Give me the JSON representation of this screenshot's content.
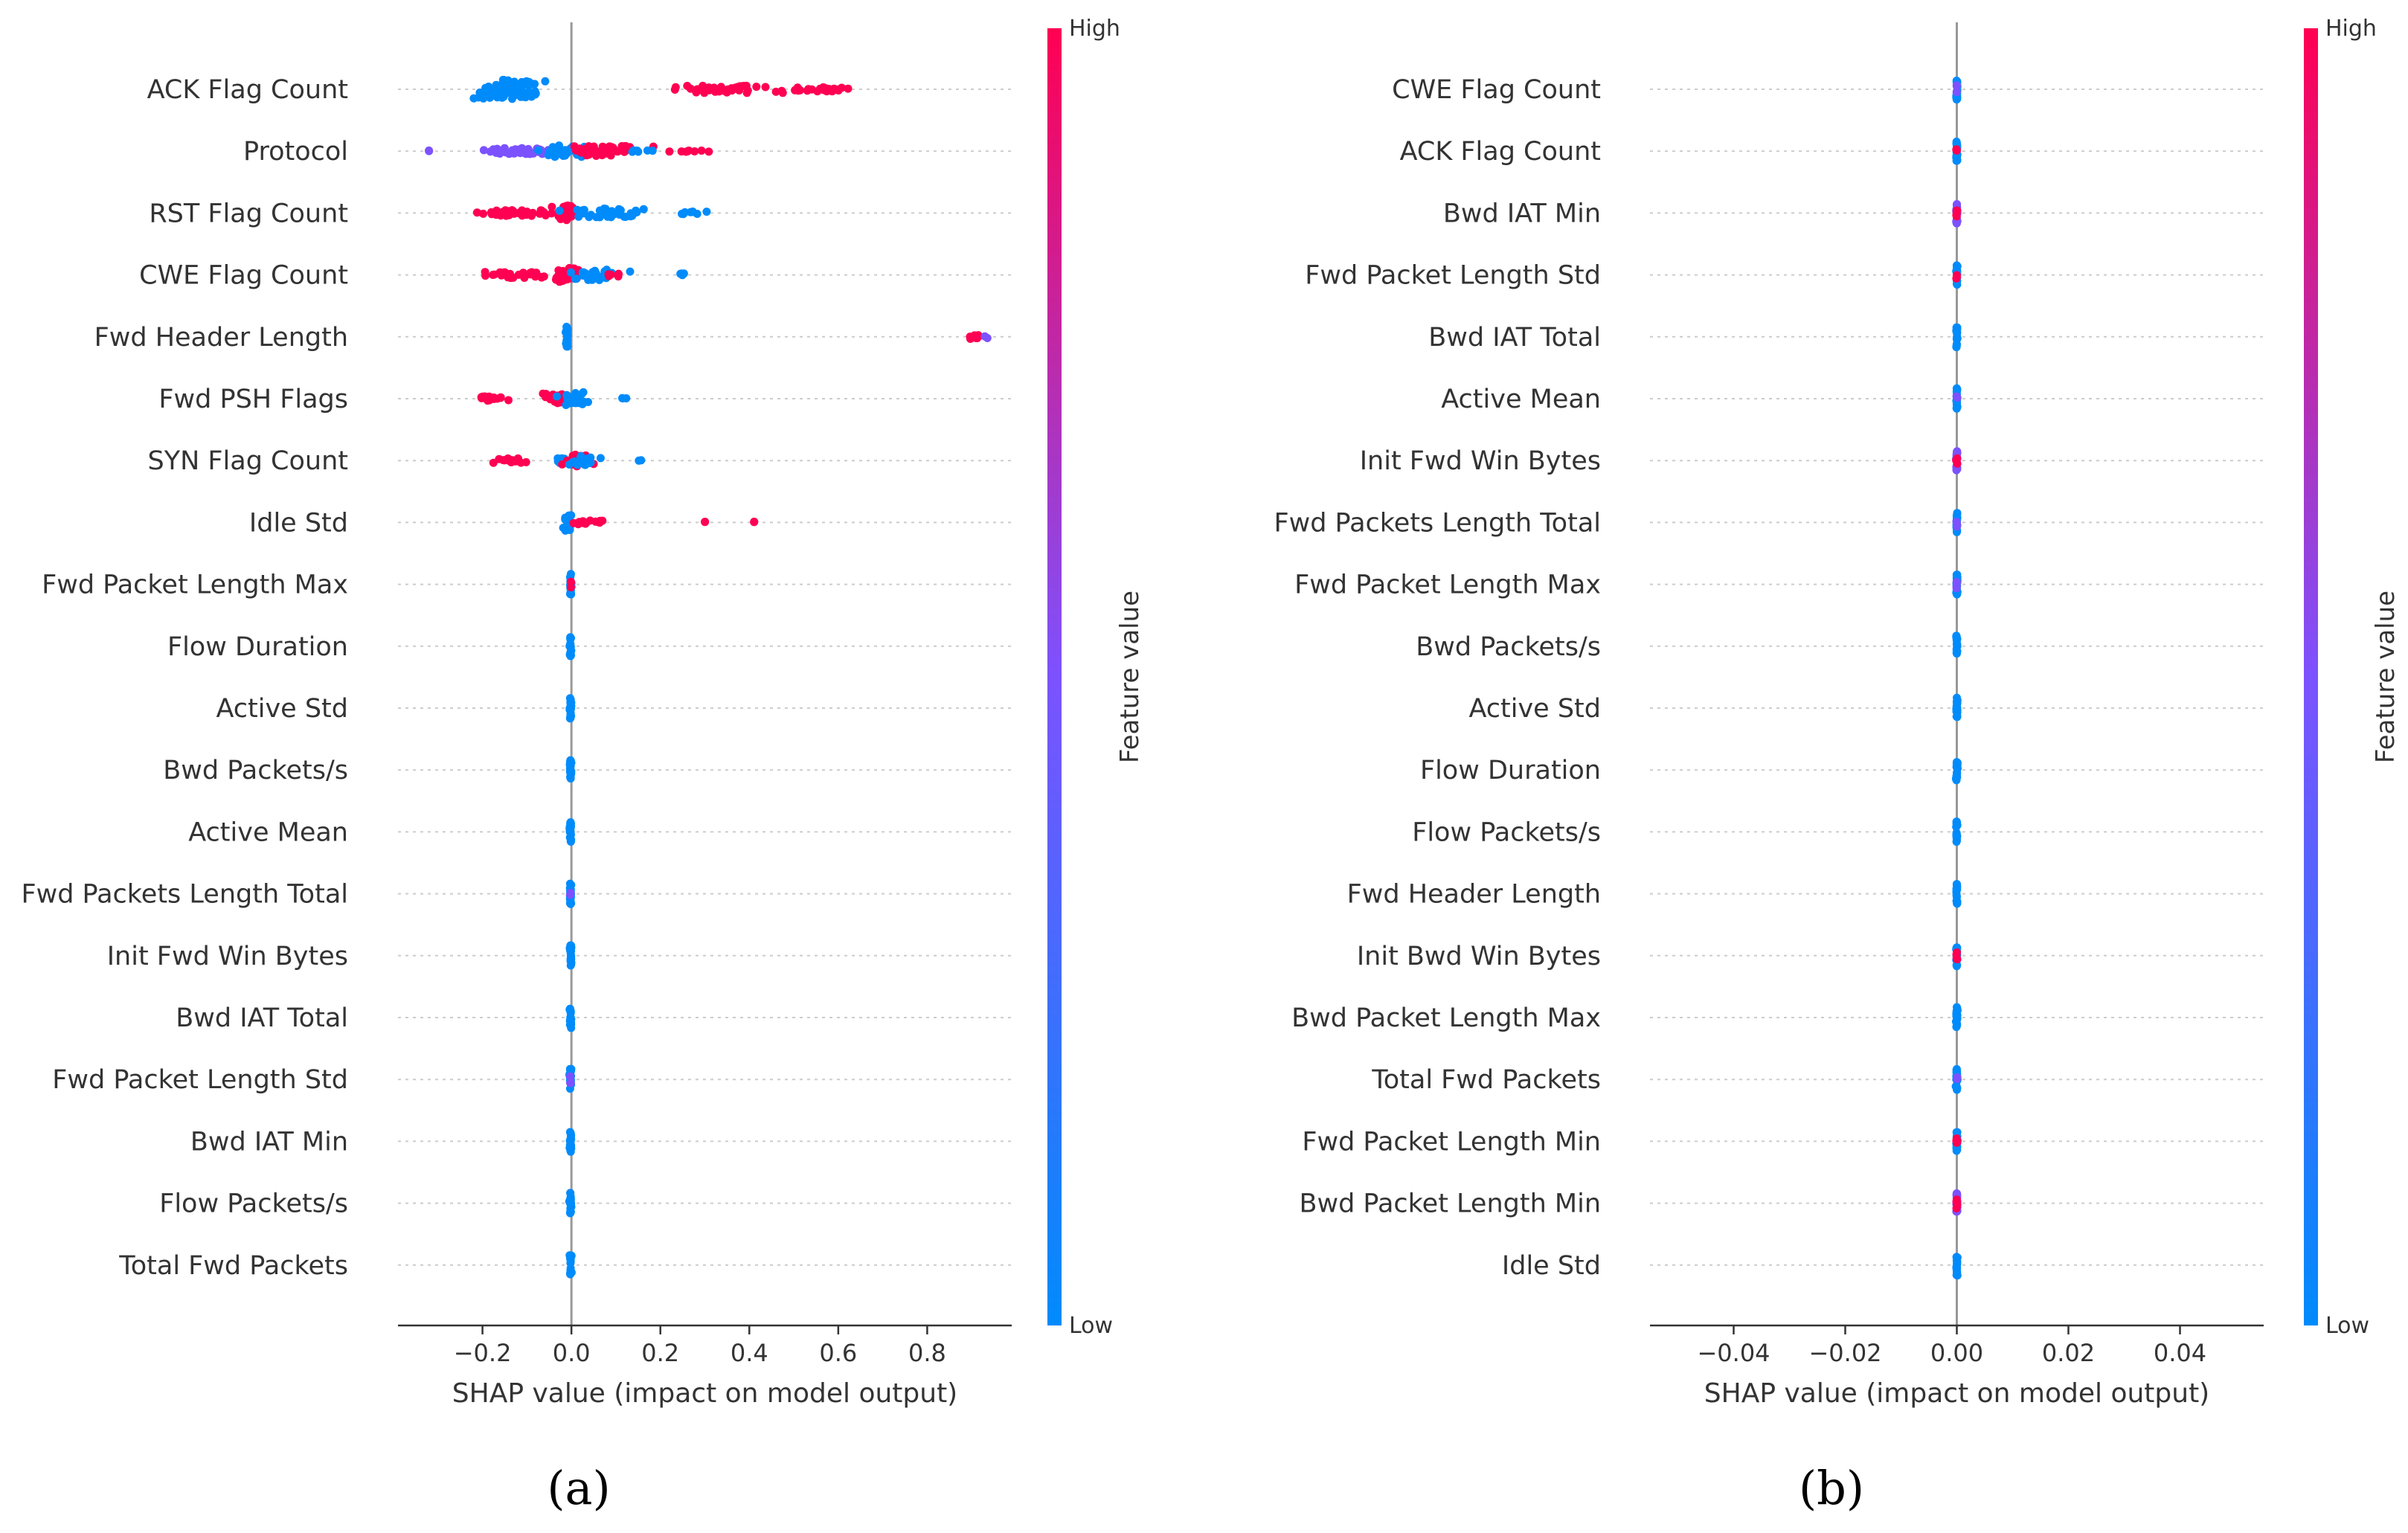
{
  "colors": {
    "low": "#008bfb",
    "mid": "#7c52ff",
    "high": "#ff0052"
  },
  "chart_data": [
    {
      "type": "scatter",
      "panel": "(a)",
      "title": "",
      "xlabel": "SHAP value (impact on model output)",
      "xlim": [
        -0.39,
        0.99
      ],
      "xticks": [
        -0.2,
        0.0,
        0.2,
        0.4,
        0.6,
        0.8
      ],
      "xtick_labels": [
        "−0.2",
        "0.0",
        "0.2",
        "0.4",
        "0.6",
        "0.8"
      ],
      "colorbar": {
        "high_label": "High",
        "low_label": "Low",
        "title": "Feature value"
      },
      "features": [
        {
          "name": "ACK Flag Count",
          "clusters": [
            {
              "center": -0.14,
              "spread": 0.08,
              "count": 90,
              "color": "low",
              "thick": 26
            },
            {
              "center": 0.33,
              "spread": 0.11,
              "count": 45,
              "color": "high",
              "thick": 10
            },
            {
              "center": 0.57,
              "spread": 0.08,
              "count": 22,
              "color": "high",
              "thick": 6
            }
          ]
        },
        {
          "name": "Protocol",
          "clusters": [
            {
              "center": -0.32,
              "spread": 0.01,
              "count": 2,
              "color": "mid",
              "thick": 2
            },
            {
              "center": -0.12,
              "spread": 0.09,
              "count": 50,
              "color": "mid",
              "thick": 8
            },
            {
              "center": -0.02,
              "spread": 0.05,
              "count": 30,
              "color": "low",
              "thick": 16
            },
            {
              "center": 0.07,
              "spread": 0.06,
              "count": 35,
              "color": "high",
              "thick": 14
            },
            {
              "center": 0.25,
              "spread": 0.17,
              "count": 12,
              "color": "high",
              "thick": 2
            },
            {
              "center": 0.16,
              "spread": 0.05,
              "count": 6,
              "color": "low",
              "thick": 2
            }
          ]
        },
        {
          "name": "RST Flag Count",
          "clusters": [
            {
              "center": -0.1,
              "spread": 0.11,
              "count": 45,
              "color": "high",
              "thick": 8
            },
            {
              "center": -0.01,
              "spread": 0.02,
              "count": 30,
              "color": "high",
              "thick": 20
            },
            {
              "center": 0.09,
              "spread": 0.07,
              "count": 40,
              "color": "low",
              "thick": 12
            },
            {
              "center": 0.26,
              "spread": 0.05,
              "count": 8,
              "color": "low",
              "thick": 4
            }
          ]
        },
        {
          "name": "CWE Flag Count",
          "clusters": [
            {
              "center": -0.13,
              "spread": 0.07,
              "count": 30,
              "color": "high",
              "thick": 8
            },
            {
              "center": -0.01,
              "spread": 0.03,
              "count": 30,
              "color": "high",
              "thick": 20
            },
            {
              "center": 0.05,
              "spread": 0.05,
              "count": 35,
              "color": "low",
              "thick": 14
            },
            {
              "center": 0.09,
              "spread": 0.02,
              "count": 6,
              "color": "high",
              "thick": 6
            },
            {
              "center": 0.25,
              "spread": 0.01,
              "count": 5,
              "color": "low",
              "thick": 4
            }
          ]
        },
        {
          "name": "Fwd Header Length",
          "clusters": [
            {
              "center": -0.01,
              "spread": 0.003,
              "count": 24,
              "color": "low",
              "thick": 28
            },
            {
              "center": 0.9,
              "spread": 0.02,
              "count": 8,
              "color": "high",
              "thick": 6
            },
            {
              "center": 0.93,
              "spread": 0.005,
              "count": 2,
              "color": "mid",
              "thick": 4
            }
          ]
        },
        {
          "name": "Fwd PSH Flags",
          "clusters": [
            {
              "center": -0.18,
              "spread": 0.05,
              "count": 18,
              "color": "high",
              "thick": 6
            },
            {
              "center": -0.03,
              "spread": 0.03,
              "count": 30,
              "color": "high",
              "thick": 14
            },
            {
              "center": 0.01,
              "spread": 0.03,
              "count": 30,
              "color": "low",
              "thick": 18
            },
            {
              "center": 0.12,
              "spread": 0.01,
              "count": 3,
              "color": "low",
              "thick": 2
            }
          ]
        },
        {
          "name": "SYN Flag Count",
          "clusters": [
            {
              "center": -0.14,
              "spread": 0.04,
              "count": 16,
              "color": "high",
              "thick": 6
            },
            {
              "center": -0.02,
              "spread": 0.02,
              "count": 12,
              "color": "low",
              "thick": 8
            },
            {
              "center": 0.01,
              "spread": 0.03,
              "count": 30,
              "color": "high",
              "thick": 16
            },
            {
              "center": 0.03,
              "spread": 0.03,
              "count": 18,
              "color": "low",
              "thick": 12
            },
            {
              "center": 0.15,
              "spread": 0.005,
              "count": 2,
              "color": "low",
              "thick": 2
            }
          ]
        },
        {
          "name": "Idle Std",
          "clusters": [
            {
              "center": -0.01,
              "spread": 0.01,
              "count": 22,
              "color": "low",
              "thick": 22
            },
            {
              "center": 0.03,
              "spread": 0.04,
              "count": 15,
              "color": "high",
              "thick": 6
            },
            {
              "center": 0.3,
              "spread": 0.003,
              "count": 2,
              "color": "high",
              "thick": 2
            },
            {
              "center": 0.41,
              "spread": 0.003,
              "count": 2,
              "color": "high",
              "thick": 2
            }
          ]
        },
        {
          "name": "Fwd Packet Length Max",
          "clusters": [
            {
              "center": -0.002,
              "spread": 0.002,
              "count": 22,
              "color": "low",
              "thick": 28
            },
            {
              "center": -0.002,
              "spread": 0.001,
              "count": 3,
              "color": "high",
              "thick": 8
            }
          ]
        },
        {
          "name": "Flow Duration",
          "clusters": [
            {
              "center": -0.002,
              "spread": 0.002,
              "count": 22,
              "color": "low",
              "thick": 28
            }
          ]
        },
        {
          "name": "Active Std",
          "clusters": [
            {
              "center": -0.002,
              "spread": 0.002,
              "count": 22,
              "color": "low",
              "thick": 28
            }
          ]
        },
        {
          "name": "Bwd Packets/s",
          "clusters": [
            {
              "center": -0.002,
              "spread": 0.002,
              "count": 22,
              "color": "low",
              "thick": 28
            }
          ]
        },
        {
          "name": "Active Mean",
          "clusters": [
            {
              "center": -0.002,
              "spread": 0.002,
              "count": 22,
              "color": "low",
              "thick": 28
            }
          ]
        },
        {
          "name": "Fwd Packets Length Total",
          "clusters": [
            {
              "center": -0.002,
              "spread": 0.002,
              "count": 22,
              "color": "low",
              "thick": 28
            },
            {
              "center": -0.002,
              "spread": 0.001,
              "count": 2,
              "color": "mid",
              "thick": 6
            }
          ]
        },
        {
          "name": "Init Fwd Win Bytes",
          "clusters": [
            {
              "center": -0.002,
              "spread": 0.002,
              "count": 22,
              "color": "low",
              "thick": 28
            }
          ]
        },
        {
          "name": "Bwd IAT Total",
          "clusters": [
            {
              "center": -0.002,
              "spread": 0.002,
              "count": 22,
              "color": "low",
              "thick": 28
            }
          ]
        },
        {
          "name": "Fwd Packet Length Std",
          "clusters": [
            {
              "center": -0.002,
              "spread": 0.002,
              "count": 22,
              "color": "low",
              "thick": 28
            },
            {
              "center": -0.002,
              "spread": 0.001,
              "count": 3,
              "color": "mid",
              "thick": 10
            }
          ]
        },
        {
          "name": "Bwd IAT Min",
          "clusters": [
            {
              "center": -0.002,
              "spread": 0.002,
              "count": 22,
              "color": "low",
              "thick": 28
            }
          ]
        },
        {
          "name": "Flow Packets/s",
          "clusters": [
            {
              "center": -0.002,
              "spread": 0.002,
              "count": 22,
              "color": "low",
              "thick": 28
            }
          ]
        },
        {
          "name": "Total Fwd Packets",
          "clusters": [
            {
              "center": -0.002,
              "spread": 0.002,
              "count": 22,
              "color": "low",
              "thick": 28
            }
          ]
        }
      ]
    },
    {
      "type": "scatter",
      "panel": "(b)",
      "title": "",
      "xlabel": "SHAP value (impact on model output)",
      "xlim": [
        -0.055,
        0.055
      ],
      "xticks": [
        -0.04,
        -0.02,
        0.0,
        0.02,
        0.04
      ],
      "xtick_labels": [
        "−0.04",
        "−0.02",
        "0.00",
        "0.02",
        "0.04"
      ],
      "colorbar": {
        "high_label": "High",
        "low_label": "Low",
        "title": "Feature value"
      },
      "features": [
        {
          "name": "CWE Flag Count",
          "clusters": [
            {
              "center": 0,
              "spread": 0.0001,
              "count": 22,
              "color": "low",
              "thick": 28
            },
            {
              "center": 0,
              "spread": 0.0001,
              "count": 3,
              "color": "mid",
              "thick": 12
            }
          ]
        },
        {
          "name": "ACK Flag Count",
          "clusters": [
            {
              "center": 0,
              "spread": 0.0001,
              "count": 22,
              "color": "low",
              "thick": 28
            },
            {
              "center": 0,
              "spread": 0.0001,
              "count": 3,
              "color": "high",
              "thick": 10
            }
          ]
        },
        {
          "name": "Bwd IAT Min",
          "clusters": [
            {
              "center": 0,
              "spread": 0.0001,
              "count": 22,
              "color": "mid",
              "thick": 28
            },
            {
              "center": 0,
              "spread": 0.0001,
              "count": 6,
              "color": "high",
              "thick": 16
            }
          ]
        },
        {
          "name": "Fwd Packet Length Std",
          "clusters": [
            {
              "center": 0,
              "spread": 0.0001,
              "count": 22,
              "color": "low",
              "thick": 28
            },
            {
              "center": 0,
              "spread": 0.0001,
              "count": 3,
              "color": "high",
              "thick": 10
            }
          ]
        },
        {
          "name": "Bwd IAT Total",
          "clusters": [
            {
              "center": 0,
              "spread": 0.0001,
              "count": 22,
              "color": "low",
              "thick": 28
            }
          ]
        },
        {
          "name": "Active Mean",
          "clusters": [
            {
              "center": 0,
              "spread": 0.0001,
              "count": 22,
              "color": "low",
              "thick": 28
            },
            {
              "center": 0,
              "spread": 0.0001,
              "count": 2,
              "color": "mid",
              "thick": 8
            }
          ]
        },
        {
          "name": "Init Fwd Win Bytes",
          "clusters": [
            {
              "center": 0,
              "spread": 0.0001,
              "count": 22,
              "color": "mid",
              "thick": 28
            },
            {
              "center": 0,
              "spread": 0.0001,
              "count": 5,
              "color": "high",
              "thick": 14
            }
          ]
        },
        {
          "name": "Fwd Packets Length Total",
          "clusters": [
            {
              "center": 0,
              "spread": 0.0001,
              "count": 22,
              "color": "low",
              "thick": 28
            },
            {
              "center": 0,
              "spread": 0.0001,
              "count": 4,
              "color": "mid",
              "thick": 12
            }
          ]
        },
        {
          "name": "Fwd Packet Length Max",
          "clusters": [
            {
              "center": 0,
              "spread": 0.0001,
              "count": 22,
              "color": "low",
              "thick": 28
            },
            {
              "center": 0,
              "spread": 0.0001,
              "count": 4,
              "color": "mid",
              "thick": 12
            }
          ]
        },
        {
          "name": "Bwd Packets/s",
          "clusters": [
            {
              "center": 0,
              "spread": 0.0001,
              "count": 22,
              "color": "low",
              "thick": 28
            }
          ]
        },
        {
          "name": "Active Std",
          "clusters": [
            {
              "center": 0,
              "spread": 0.0001,
              "count": 22,
              "color": "low",
              "thick": 28
            }
          ]
        },
        {
          "name": "Flow Duration",
          "clusters": [
            {
              "center": 0,
              "spread": 0.0001,
              "count": 22,
              "color": "low",
              "thick": 28
            }
          ]
        },
        {
          "name": "Flow Packets/s",
          "clusters": [
            {
              "center": 0,
              "spread": 0.0001,
              "count": 22,
              "color": "low",
              "thick": 28
            }
          ]
        },
        {
          "name": "Fwd Header Length",
          "clusters": [
            {
              "center": 0,
              "spread": 0.0001,
              "count": 22,
              "color": "low",
              "thick": 28
            }
          ]
        },
        {
          "name": "Init Bwd Win Bytes",
          "clusters": [
            {
              "center": 0,
              "spread": 0.0001,
              "count": 22,
              "color": "low",
              "thick": 28
            },
            {
              "center": 0,
              "spread": 0.0001,
              "count": 6,
              "color": "high",
              "thick": 12
            }
          ]
        },
        {
          "name": "Bwd Packet Length Max",
          "clusters": [
            {
              "center": 0,
              "spread": 0.0001,
              "count": 22,
              "color": "low",
              "thick": 28
            }
          ]
        },
        {
          "name": "Total Fwd Packets",
          "clusters": [
            {
              "center": 0,
              "spread": 0.0001,
              "count": 22,
              "color": "low",
              "thick": 28
            },
            {
              "center": 0,
              "spread": 0.0001,
              "count": 2,
              "color": "mid",
              "thick": 8
            }
          ]
        },
        {
          "name": "Fwd Packet Length Min",
          "clusters": [
            {
              "center": 0,
              "spread": 0.0001,
              "count": 22,
              "color": "low",
              "thick": 28
            },
            {
              "center": 0,
              "spread": 0.0001,
              "count": 6,
              "color": "high",
              "thick": 14
            }
          ]
        },
        {
          "name": "Bwd Packet Length Min",
          "clusters": [
            {
              "center": 0,
              "spread": 0.0001,
              "count": 22,
              "color": "mid",
              "thick": 28
            },
            {
              "center": 0,
              "spread": 0.0001,
              "count": 8,
              "color": "high",
              "thick": 18
            }
          ]
        },
        {
          "name": "Idle Std",
          "clusters": [
            {
              "center": 0,
              "spread": 0.0001,
              "count": 22,
              "color": "low",
              "thick": 28
            }
          ]
        }
      ]
    }
  ]
}
